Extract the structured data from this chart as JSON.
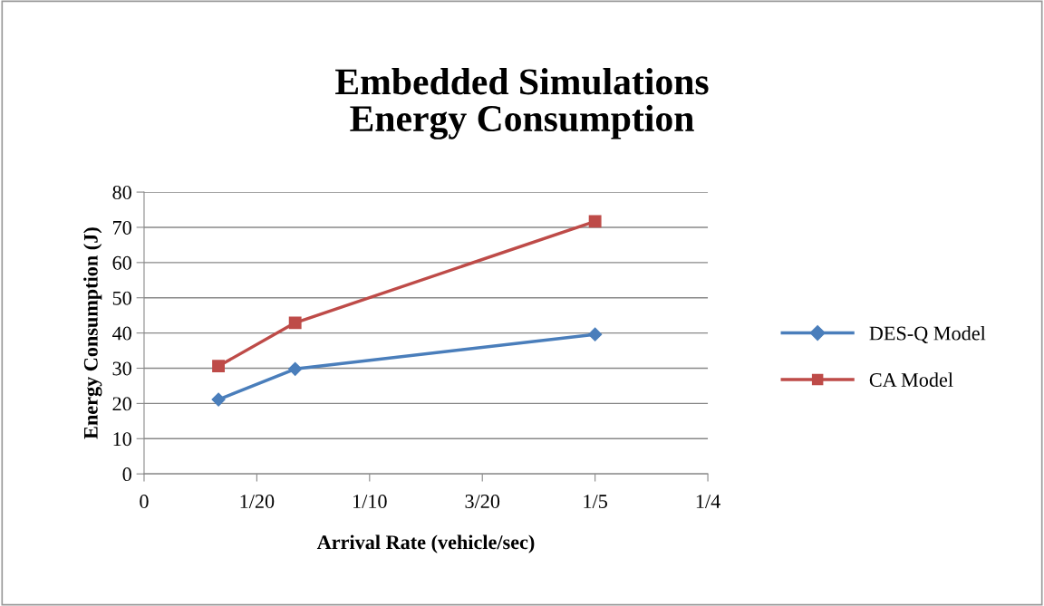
{
  "chart_data": {
    "type": "line",
    "title": "Embedded Simulations\nEnergy Consumption",
    "xlabel": "Arrival Rate (vehicle/sec)",
    "ylabel": "Energy Consumption (J)",
    "xlim": [
      0,
      0.25
    ],
    "xticks": [
      0,
      {
        "value": 0.05,
        "label": "1/20"
      },
      {
        "value": 0.1,
        "label": "1/10"
      },
      {
        "value": 0.15,
        "label": "3/20"
      },
      {
        "value": 0.2,
        "label": "1/5"
      },
      {
        "value": 0.25,
        "label": "1/4"
      }
    ],
    "ylim": [
      0,
      80
    ],
    "yticks": [
      0,
      10,
      20,
      30,
      40,
      50,
      60,
      70,
      80
    ],
    "x": [
      0.033,
      0.067,
      0.2
    ],
    "series": [
      {
        "name": "DES-Q Model",
        "color": "#4a7ebb",
        "marker": "diamond",
        "values": [
          21.1,
          29.8,
          39.6
        ]
      },
      {
        "name": "CA Model",
        "color": "#be4b48",
        "marker": "square",
        "values": [
          30.6,
          42.9,
          71.7
        ]
      }
    ],
    "grid": "y",
    "legend": "right",
    "line_style": "solid"
  }
}
